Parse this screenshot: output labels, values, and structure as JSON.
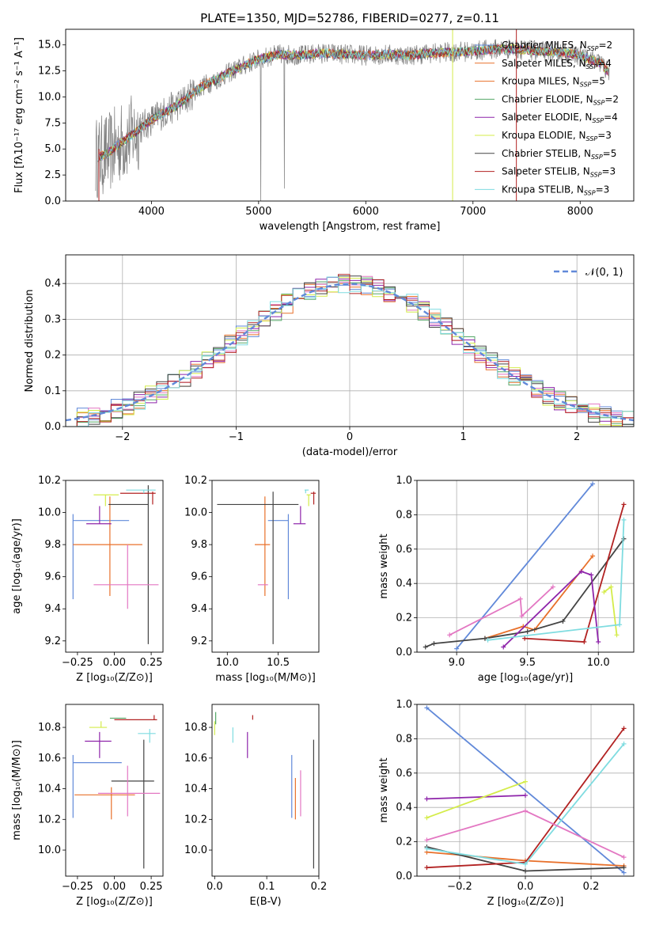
{
  "colors": {
    "chabrier_miles": "#6189d9",
    "salpeter_miles": "#e8702a",
    "kroupa_miles": "#e8702a",
    "chabrier_elodie": "#55a868",
    "salpeter_elodie": "#8e24aa",
    "kroupa_elodie": "#d4ec4a",
    "chabrier_stelib": "#444444",
    "salpeter_stelib": "#b22222",
    "kroupa_stelib": "#7fdce0",
    "pink": "#e377c2",
    "gray": "#7f7f7f"
  },
  "chart_data": [
    {
      "id": "spectrum",
      "type": "line",
      "title": "PLATE=1350, MJD=52786, FIBERID=0277, z=0.11",
      "xlabel": "wavelength [Angstrom, rest frame]",
      "ylabel": "Flux [fλ10⁻¹⁷ erg cm⁻² s⁻¹ A⁻¹]",
      "xlim": [
        3200,
        8500
      ],
      "ylim": [
        0,
        16.5
      ],
      "xticks": [
        "4000",
        "5000",
        "6000",
        "7000",
        "8000"
      ],
      "yticks": [
        "0.0",
        "2.5",
        "5.0",
        "7.5",
        "10.0",
        "12.5",
        "15.0"
      ],
      "grid": false,
      "legend_position": "upper-right",
      "legend": [
        {
          "label": "Chabrier MILES, N",
          "sub": "SSP",
          "tail": "=2"
        },
        {
          "label": "Salpeter MILES, N",
          "sub": "SSP",
          "tail": "=4"
        },
        {
          "label": "Kroupa MILES, N",
          "sub": "SSP",
          "tail": "=5"
        },
        {
          "label": "Chabrier ELODIE, N",
          "sub": "SSP",
          "tail": "=2"
        },
        {
          "label": "Salpeter ELODIE, N",
          "sub": "SSP",
          "tail": "=4"
        },
        {
          "label": "Kroupa ELODIE, N",
          "sub": "SSP",
          "tail": "=3"
        },
        {
          "label": "Chabrier STELIB, N",
          "sub": "SSP",
          "tail": "=5"
        },
        {
          "label": "Salpeter STELIB, N",
          "sub": "SSP",
          "tail": "=3"
        },
        {
          "label": "Kroupa STELIB, N",
          "sub": "SSP",
          "tail": "=3"
        }
      ],
      "continuum_x": [
        3500,
        3600,
        3700,
        3800,
        3900,
        4000,
        4100,
        4200,
        4300,
        4400,
        4500,
        4600,
        4700,
        4800,
        4900,
        5000,
        5100,
        5200,
        5400,
        5600,
        5800,
        6000,
        6200,
        6400,
        6600,
        6800,
        7000,
        7200,
        7400,
        7600,
        7800,
        8000,
        8200,
        8250
      ],
      "continuum_y": [
        4.2,
        4.6,
        5.5,
        6.2,
        7.0,
        7.8,
        8.4,
        9.0,
        9.6,
        10.5,
        11.2,
        11.6,
        12.2,
        12.7,
        13.2,
        13.6,
        13.9,
        14.1,
        14.0,
        14.2,
        14.1,
        14.0,
        14.1,
        14.0,
        14.2,
        14.3,
        14.4,
        14.6,
        14.6,
        14.4,
        14.3,
        14.0,
        13.2,
        12.5
      ]
    },
    {
      "id": "residuals",
      "type": "histogram",
      "xlabel": "(data-model)/error",
      "ylabel": "Normed distribution",
      "xlim": [
        -2.5,
        2.5
      ],
      "ylim": [
        0,
        0.48
      ],
      "xticks": [
        "−2",
        "−1",
        "0",
        "1",
        "2"
      ],
      "yticks": [
        "0.0",
        "0.1",
        "0.2",
        "0.3",
        "0.4"
      ],
      "grid": true,
      "legend_position": "upper-right",
      "legend_label": "𝒩(0, 1)",
      "bin_width": 0.1
    },
    {
      "id": "age_vs_Z",
      "type": "errorbar",
      "xlabel": "Z [log₁₀(Z/Z⊙)]",
      "ylabel": "age  [log₁₀(age/yr)]",
      "xlim": [
        -0.33,
        0.33
      ],
      "ylim": [
        9.13,
        10.2
      ],
      "xticks": [
        "−0.25",
        "0.00",
        "0.25"
      ],
      "yticks": [
        "9.2",
        "9.4",
        "9.6",
        "9.8",
        "10.0",
        "10.2"
      ],
      "points": [
        {
          "x": -0.28,
          "y": 9.95,
          "xerr": [
            0.0,
            0.38
          ],
          "yerr": [
            0.49,
            0.04
          ],
          "color": "chabrier_miles"
        },
        {
          "x": -0.03,
          "y": 9.8,
          "xerr": [
            0.25,
            0.22
          ],
          "yerr": [
            0.32,
            0.3
          ],
          "color": "salpeter_miles"
        },
        {
          "x": 0.23,
          "y": 10.05,
          "xerr": [
            0.27,
            0.0
          ],
          "yerr": [
            0.87,
            0.12
          ],
          "color": "chabrier_stelib"
        },
        {
          "x": 0.26,
          "y": 10.12,
          "xerr": [
            0.22,
            0.02
          ],
          "yerr": [
            0.07,
            0.01
          ],
          "color": "salpeter_stelib"
        },
        {
          "x": -0.1,
          "y": 9.93,
          "xerr": [
            0.09,
            0.08
          ],
          "yerr": [
            0.0,
            0.11
          ],
          "color": "salpeter_elodie"
        },
        {
          "x": -0.06,
          "y": 10.11,
          "xerr": [
            0.08,
            0.09
          ],
          "yerr": [
            0.07,
            0.0
          ],
          "color": "kroupa_elodie"
        },
        {
          "x": 0.2,
          "y": 10.14,
          "xerr": [
            0.12,
            0.08
          ],
          "yerr": [
            0.02,
            0.0
          ],
          "color": "kroupa_stelib"
        },
        {
          "x": 0.09,
          "y": 9.55,
          "xerr": [
            0.23,
            0.21
          ],
          "yerr": [
            0.15,
            0.25
          ],
          "color": "pink"
        }
      ]
    },
    {
      "id": "age_vs_mass",
      "type": "errorbar",
      "xlabel": "mass [log₁₀(M/M⊙)]",
      "ylabel": "",
      "xlim": [
        9.85,
        10.9
      ],
      "ylim": [
        9.13,
        10.2
      ],
      "xticks": [
        "10.0",
        "10.5"
      ],
      "yticks": [
        "9.2",
        "9.4",
        "9.6",
        "9.8",
        "10.0",
        "10.2"
      ],
      "points": [
        {
          "x": 10.6,
          "y": 9.95,
          "xerr": [
            0.2,
            0.0
          ],
          "yerr": [
            0.49,
            0.04
          ],
          "color": "chabrier_miles"
        },
        {
          "x": 10.37,
          "y": 9.8,
          "xerr": [
            0.1,
            0.05
          ],
          "yerr": [
            0.32,
            0.3
          ],
          "color": "salpeter_miles"
        },
        {
          "x": 10.45,
          "y": 10.05,
          "xerr": [
            0.55,
            0.25
          ],
          "yerr": [
            0.87,
            0.08
          ],
          "color": "chabrier_stelib"
        },
        {
          "x": 10.85,
          "y": 10.12,
          "xerr": [
            0.03,
            0.02
          ],
          "yerr": [
            0.07,
            0.01
          ],
          "color": "salpeter_stelib"
        },
        {
          "x": 10.72,
          "y": 9.93,
          "xerr": [
            0.07,
            0.05
          ],
          "yerr": [
            0.0,
            0.11
          ],
          "color": "salpeter_elodie"
        },
        {
          "x": 10.8,
          "y": 10.11,
          "xerr": [
            0.02,
            0.02
          ],
          "yerr": [
            0.07,
            0.0
          ],
          "color": "kroupa_elodie"
        },
        {
          "x": 10.77,
          "y": 10.14,
          "xerr": [
            0.01,
            0.03
          ],
          "yerr": [
            0.02,
            0.0
          ],
          "color": "kroupa_stelib"
        },
        {
          "x": 10.4,
          "y": 9.55,
          "xerr": [
            0.1,
            0.0
          ],
          "yerr": [
            0.0,
            0.0
          ],
          "color": "pink"
        }
      ]
    },
    {
      "id": "weight_vs_age",
      "type": "line",
      "xlabel": "age  [log₁₀(age/yr)]",
      "ylabel": "mass weight",
      "xlim": [
        8.72,
        10.25
      ],
      "ylim": [
        0,
        1.0
      ],
      "xticks": [
        "9.0",
        "9.5",
        "10.0"
      ],
      "yticks": [
        "0.0",
        "0.2",
        "0.4",
        "0.6",
        "0.8",
        "1.0"
      ],
      "grid": true,
      "series": [
        {
          "color": "chabrier_miles",
          "x": [
            9.0,
            9.96
          ],
          "y": [
            0.02,
            0.98
          ]
        },
        {
          "color": "salpeter_miles",
          "x": [
            9.2,
            9.47,
            9.55,
            9.96
          ],
          "y": [
            0.08,
            0.15,
            0.13,
            0.56
          ]
        },
        {
          "color": "chabrier_stelib",
          "x": [
            8.78,
            8.84,
            9.2,
            9.5,
            9.75,
            10.18
          ],
          "y": [
            0.03,
            0.05,
            0.08,
            0.12,
            0.18,
            0.66
          ]
        },
        {
          "color": "salpeter_stelib",
          "x": [
            9.48,
            9.9,
            10.18
          ],
          "y": [
            0.08,
            0.06,
            0.86
          ]
        },
        {
          "color": "salpeter_elodie",
          "x": [
            9.33,
            9.88,
            9.95,
            10.0
          ],
          "y": [
            0.03,
            0.47,
            0.45,
            0.06
          ]
        },
        {
          "color": "kroupa_elodie",
          "x": [
            10.04,
            10.09,
            10.13
          ],
          "y": [
            0.35,
            0.38,
            0.1
          ]
        },
        {
          "color": "kroupa_stelib",
          "x": [
            9.22,
            10.15,
            10.18
          ],
          "y": [
            0.07,
            0.16,
            0.77
          ]
        },
        {
          "color": "pink",
          "x": [
            8.95,
            9.45,
            9.46,
            9.68
          ],
          "y": [
            0.1,
            0.31,
            0.21,
            0.38
          ]
        }
      ]
    },
    {
      "id": "mass_vs_Z",
      "type": "errorbar",
      "xlabel": "Z [log₁₀(Z/Z⊙)]",
      "ylabel": "mass [log₁₀(M/M⊙)]",
      "xlim": [
        -0.33,
        0.33
      ],
      "ylim": [
        9.83,
        10.95
      ],
      "xticks": [
        "−0.25",
        "0.00",
        "0.25"
      ],
      "yticks": [
        "10.0",
        "10.2",
        "10.4",
        "10.6",
        "10.8"
      ],
      "points": [
        {
          "x": -0.28,
          "y": 10.57,
          "xerr": [
            0.0,
            0.33
          ],
          "yerr": [
            0.36,
            0.05
          ],
          "color": "chabrier_miles"
        },
        {
          "x": -0.02,
          "y": 10.36,
          "xerr": [
            0.25,
            0.16
          ],
          "yerr": [
            0.16,
            0.05
          ],
          "color": "salpeter_miles"
        },
        {
          "x": 0.2,
          "y": 10.45,
          "xerr": [
            0.22,
            0.07
          ],
          "yerr": [
            0.57,
            0.27
          ],
          "color": "chabrier_stelib"
        },
        {
          "x": 0.27,
          "y": 10.85,
          "xerr": [
            0.27,
            0.02
          ],
          "yerr": [
            0.0,
            0.03
          ],
          "color": "salpeter_stelib"
        },
        {
          "x": -0.1,
          "y": 10.71,
          "xerr": [
            0.1,
            0.08
          ],
          "yerr": [
            0.11,
            0.06
          ],
          "color": "salpeter_elodie"
        },
        {
          "x": -0.09,
          "y": 10.8,
          "xerr": [
            0.08,
            0.04
          ],
          "yerr": [
            0.0,
            0.04
          ],
          "color": "kroupa_elodie"
        },
        {
          "x": 0.0,
          "y": 10.86,
          "xerr": [
            0.03,
            0.08
          ],
          "yerr": [
            0.0,
            0.0
          ],
          "color": "chabrier_elodie"
        },
        {
          "x": 0.24,
          "y": 10.76,
          "xerr": [
            0.08,
            0.04
          ],
          "yerr": [
            0.06,
            0.03
          ],
          "color": "kroupa_stelib"
        },
        {
          "x": 0.09,
          "y": 10.37,
          "xerr": [
            0.2,
            0.22
          ],
          "yerr": [
            0.15,
            0.18
          ],
          "color": "pink"
        }
      ]
    },
    {
      "id": "mass_vs_EBV",
      "type": "errorbar",
      "xlabel": "E(B-V)",
      "ylabel": "",
      "xlim": [
        -0.005,
        0.2
      ],
      "ylim": [
        9.83,
        10.95
      ],
      "xticks": [
        "0.0",
        "0.1",
        "0.2"
      ],
      "yticks": [
        "10.0",
        "10.2",
        "10.4",
        "10.6",
        "10.8"
      ],
      "points": [
        {
          "x": 0.148,
          "y": 10.57,
          "yerr": [
            0.36,
            0.05
          ],
          "color": "chabrier_miles"
        },
        {
          "x": 0.155,
          "y": 10.36,
          "yerr": [
            0.16,
            0.11
          ],
          "color": "salpeter_miles"
        },
        {
          "x": 0.19,
          "y": 10.45,
          "yerr": [
            0.57,
            0.27
          ],
          "color": "chabrier_stelib"
        },
        {
          "x": 0.073,
          "y": 10.85,
          "yerr": [
            0.0,
            0.03
          ],
          "color": "salpeter_stelib"
        },
        {
          "x": 0.063,
          "y": 10.71,
          "yerr": [
            0.11,
            0.06
          ],
          "color": "salpeter_elodie"
        },
        {
          "x": 0.0,
          "y": 10.8,
          "yerr": [
            0.05,
            0.04
          ],
          "color": "kroupa_elodie"
        },
        {
          "x": 0.002,
          "y": 10.86,
          "yerr": [
            0.04,
            0.04
          ],
          "color": "chabrier_elodie"
        },
        {
          "x": 0.035,
          "y": 10.76,
          "yerr": [
            0.06,
            0.04
          ],
          "color": "kroupa_stelib"
        },
        {
          "x": 0.165,
          "y": 10.37,
          "yerr": [
            0.15,
            0.15
          ],
          "color": "pink"
        }
      ]
    },
    {
      "id": "weight_vs_Z",
      "type": "line",
      "xlabel": "Z [log₁₀(Z/Z⊙)]",
      "ylabel": "mass weight",
      "xlim": [
        -0.33,
        0.33
      ],
      "ylim": [
        0,
        1.0
      ],
      "xticks": [
        "−0.2",
        "0.0",
        "0.2"
      ],
      "yticks": [
        "0.0",
        "0.2",
        "0.4",
        "0.6",
        "0.8",
        "1.0"
      ],
      "grid": true,
      "series": [
        {
          "color": "chabrier_miles",
          "x": [
            -0.3,
            0.3
          ],
          "y": [
            0.98,
            0.02
          ]
        },
        {
          "color": "salpeter_miles",
          "x": [
            -0.3,
            0.0,
            0.3
          ],
          "y": [
            0.14,
            0.09,
            0.06
          ]
        },
        {
          "color": "chabrier_stelib",
          "x": [
            -0.3,
            0.0,
            0.3
          ],
          "y": [
            0.17,
            0.03,
            0.05
          ]
        },
        {
          "color": "salpeter_stelib",
          "x": [
            -0.3,
            0.0,
            0.3
          ],
          "y": [
            0.05,
            0.08,
            0.86
          ]
        },
        {
          "color": "salpeter_elodie",
          "x": [
            -0.3,
            0.0
          ],
          "y": [
            0.45,
            0.47
          ]
        },
        {
          "color": "kroupa_elodie",
          "x": [
            -0.3,
            0.0
          ],
          "y": [
            0.34,
            0.55
          ]
        },
        {
          "color": "kroupa_stelib",
          "x": [
            -0.3,
            0.0,
            0.3
          ],
          "y": [
            0.16,
            0.07,
            0.77
          ]
        },
        {
          "color": "pink",
          "x": [
            -0.3,
            0.0,
            0.3
          ],
          "y": [
            0.21,
            0.38,
            0.11
          ]
        }
      ]
    }
  ]
}
